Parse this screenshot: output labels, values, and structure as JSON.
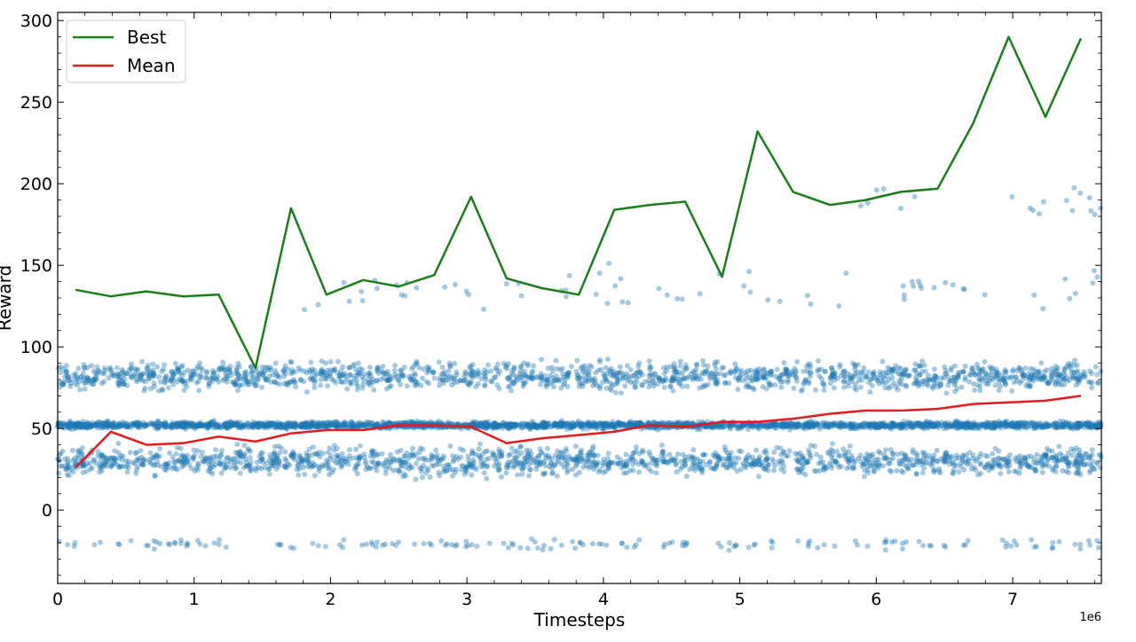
{
  "chart_data": {
    "type": "scatter",
    "xlabel": "Timesteps",
    "ylabel": "Reward",
    "x_offset_label": "1e6",
    "xlim": [
      0,
      7.65
    ],
    "ylim": [
      -45,
      305
    ],
    "xticks": [
      0,
      1,
      2,
      3,
      4,
      5,
      6,
      7
    ],
    "xtick_labels": [
      "0",
      "1",
      "2",
      "3",
      "4",
      "5",
      "6",
      "7"
    ],
    "yticks": [
      0,
      50,
      100,
      150,
      200,
      250,
      300
    ],
    "ytick_labels": [
      "0",
      "50",
      "100",
      "150",
      "200",
      "250",
      "300"
    ],
    "grid": false,
    "legend_position": "top-left",
    "scatter_color": "#1f77b4",
    "scatter_bands": [
      {
        "y": 82,
        "spread": 4,
        "x_range": [
          0,
          7.65
        ],
        "density": 200
      },
      {
        "y": 52,
        "spread": 1,
        "x_range": [
          0,
          7.65
        ],
        "density": 320
      },
      {
        "y": 30,
        "spread": 4,
        "x_range": [
          0,
          7.65
        ],
        "density": 200
      },
      {
        "y": -21,
        "spread": 1.5,
        "x_range": [
          0,
          7.65
        ],
        "density": 22
      },
      {
        "y": 135,
        "spread": 6,
        "x_range": [
          1.8,
          7.65
        ],
        "density": 12
      },
      {
        "y": 188,
        "spread": 5,
        "x_range": [
          5.8,
          7.65
        ],
        "density": 10
      }
    ],
    "series": [
      {
        "name": "Best",
        "color": "#1a7f1a",
        "x": [
          0.13,
          0.39,
          0.65,
          0.92,
          1.18,
          1.45,
          1.71,
          1.97,
          2.24,
          2.5,
          2.76,
          3.03,
          3.29,
          3.55,
          3.82,
          4.08,
          4.34,
          4.6,
          4.87,
          5.13,
          5.39,
          5.66,
          5.92,
          6.18,
          6.45,
          6.71,
          6.97,
          7.24,
          7.5
        ],
        "y": [
          135,
          131,
          134,
          131,
          132,
          87,
          185,
          132,
          141,
          137,
          144,
          192,
          142,
          136,
          132,
          184,
          187,
          189,
          143,
          232,
          195,
          187,
          190,
          195,
          197,
          237,
          290,
          241,
          289
        ]
      },
      {
        "name": "Mean",
        "color": "#e41a1c",
        "x": [
          0.13,
          0.39,
          0.65,
          0.92,
          1.18,
          1.45,
          1.71,
          1.97,
          2.24,
          2.5,
          2.76,
          3.03,
          3.29,
          3.55,
          3.82,
          4.08,
          4.34,
          4.6,
          4.87,
          5.13,
          5.39,
          5.66,
          5.92,
          6.18,
          6.45,
          6.71,
          6.97,
          7.24,
          7.5
        ],
        "y": [
          26,
          48,
          40,
          41,
          45,
          42,
          47,
          49,
          49,
          52,
          52,
          51,
          41,
          44,
          46,
          48,
          52,
          51,
          54,
          54,
          56,
          59,
          61,
          61,
          62,
          65,
          66,
          67,
          70
        ]
      }
    ]
  }
}
